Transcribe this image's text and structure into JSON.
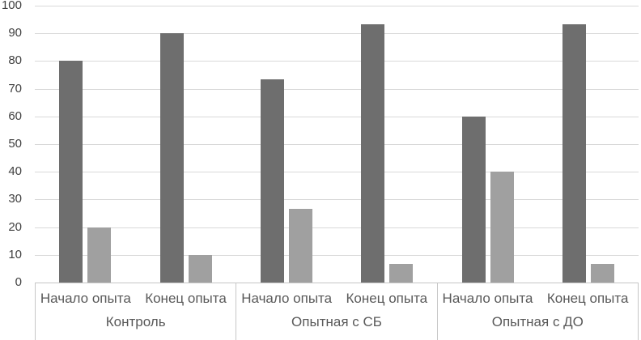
{
  "chart_data": {
    "type": "bar",
    "title": "",
    "xlabel": "",
    "ylabel": "",
    "ylim": [
      0,
      100
    ],
    "ytick_step": 10,
    "yticks": [
      0,
      10,
      20,
      30,
      40,
      50,
      60,
      70,
      80,
      90,
      100
    ],
    "grid": true,
    "legend": "none",
    "groups": [
      {
        "label": "Контроль",
        "subcategories": [
          "Начало опыта",
          "Конец опыта"
        ]
      },
      {
        "label": "Опытная с СБ",
        "subcategories": [
          "Начало опыта",
          "Конец опыта"
        ]
      },
      {
        "label": "Опытная с ДО",
        "subcategories": [
          "Начало опыта",
          "Конец опыта"
        ]
      }
    ],
    "series": [
      {
        "name": "dark",
        "color": "#6e6e6e",
        "values": [
          80,
          90,
          73.3,
          93.3,
          60,
          93.3
        ]
      },
      {
        "name": "light",
        "color": "#a0a0a0",
        "values": [
          20,
          10,
          26.7,
          6.7,
          40,
          6.7
        ]
      }
    ]
  },
  "colors": {
    "gridline": "#d9d9d9",
    "axis_line": "#c6c6c6",
    "tick_text": "#404040",
    "label_text": "#595959",
    "background": "#ffffff"
  }
}
